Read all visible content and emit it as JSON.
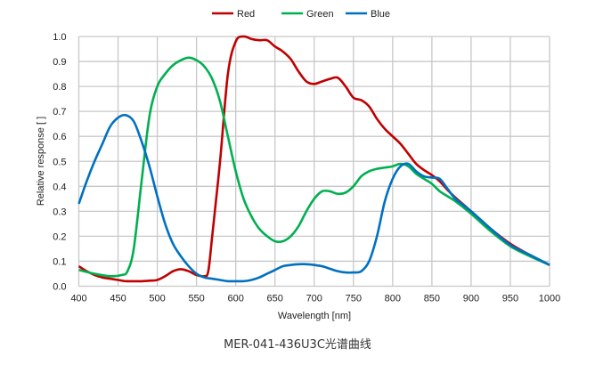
{
  "chart_data": {
    "type": "line",
    "title": "",
    "caption": "MER-041-436U3C光谱曲线",
    "xlabel": "Wavelength [nm]",
    "ylabel": "Relative response [ ]",
    "xlim": [
      400,
      1000
    ],
    "ylim": [
      0,
      1.0
    ],
    "xticks": [
      400,
      450,
      500,
      550,
      600,
      650,
      700,
      750,
      800,
      850,
      900,
      950,
      1000
    ],
    "yticks": [
      "0.0",
      "0.1",
      "0.2",
      "0.3",
      "0.4",
      "0.5",
      "0.6",
      "0.7",
      "0.8",
      "0.9",
      "1.0"
    ],
    "grid": true,
    "legend_position": "top",
    "series": [
      {
        "name": "Red",
        "color": "#c00000",
        "points": [
          [
            400,
            0.08
          ],
          [
            410,
            0.06
          ],
          [
            420,
            0.045
          ],
          [
            430,
            0.035
          ],
          [
            440,
            0.03
          ],
          [
            450,
            0.025
          ],
          [
            460,
            0.02
          ],
          [
            470,
            0.02
          ],
          [
            480,
            0.02
          ],
          [
            490,
            0.022
          ],
          [
            500,
            0.025
          ],
          [
            510,
            0.04
          ],
          [
            520,
            0.06
          ],
          [
            530,
            0.068
          ],
          [
            540,
            0.06
          ],
          [
            550,
            0.045
          ],
          [
            560,
            0.04
          ],
          [
            565,
            0.06
          ],
          [
            570,
            0.2
          ],
          [
            580,
            0.5
          ],
          [
            590,
            0.85
          ],
          [
            600,
            0.98
          ],
          [
            610,
            1.0
          ],
          [
            620,
            0.99
          ],
          [
            630,
            0.985
          ],
          [
            640,
            0.985
          ],
          [
            650,
            0.96
          ],
          [
            660,
            0.94
          ],
          [
            670,
            0.91
          ],
          [
            680,
            0.86
          ],
          [
            690,
            0.82
          ],
          [
            700,
            0.81
          ],
          [
            710,
            0.82
          ],
          [
            720,
            0.83
          ],
          [
            730,
            0.835
          ],
          [
            740,
            0.8
          ],
          [
            750,
            0.755
          ],
          [
            760,
            0.745
          ],
          [
            770,
            0.72
          ],
          [
            780,
            0.67
          ],
          [
            790,
            0.63
          ],
          [
            800,
            0.6
          ],
          [
            810,
            0.57
          ],
          [
            820,
            0.53
          ],
          [
            830,
            0.49
          ],
          [
            840,
            0.465
          ],
          [
            850,
            0.445
          ],
          [
            860,
            0.42
          ],
          [
            870,
            0.385
          ],
          [
            880,
            0.355
          ],
          [
            900,
            0.3
          ],
          [
            925,
            0.23
          ],
          [
            950,
            0.17
          ],
          [
            975,
            0.125
          ],
          [
            1000,
            0.085
          ]
        ]
      },
      {
        "name": "Green",
        "color": "#00b050",
        "points": [
          [
            400,
            0.065
          ],
          [
            420,
            0.05
          ],
          [
            440,
            0.04
          ],
          [
            455,
            0.045
          ],
          [
            462,
            0.06
          ],
          [
            470,
            0.15
          ],
          [
            480,
            0.42
          ],
          [
            490,
            0.68
          ],
          [
            500,
            0.8
          ],
          [
            510,
            0.85
          ],
          [
            520,
            0.885
          ],
          [
            530,
            0.905
          ],
          [
            540,
            0.915
          ],
          [
            550,
            0.905
          ],
          [
            560,
            0.88
          ],
          [
            570,
            0.83
          ],
          [
            580,
            0.74
          ],
          [
            590,
            0.6
          ],
          [
            600,
            0.46
          ],
          [
            610,
            0.35
          ],
          [
            620,
            0.28
          ],
          [
            630,
            0.23
          ],
          [
            640,
            0.2
          ],
          [
            650,
            0.18
          ],
          [
            660,
            0.18
          ],
          [
            670,
            0.2
          ],
          [
            680,
            0.24
          ],
          [
            690,
            0.3
          ],
          [
            700,
            0.35
          ],
          [
            710,
            0.38
          ],
          [
            720,
            0.38
          ],
          [
            730,
            0.37
          ],
          [
            740,
            0.375
          ],
          [
            750,
            0.4
          ],
          [
            760,
            0.44
          ],
          [
            770,
            0.46
          ],
          [
            780,
            0.47
          ],
          [
            790,
            0.475
          ],
          [
            800,
            0.48
          ],
          [
            810,
            0.49
          ],
          [
            820,
            0.48
          ],
          [
            830,
            0.45
          ],
          [
            840,
            0.43
          ],
          [
            850,
            0.41
          ],
          [
            860,
            0.38
          ],
          [
            870,
            0.36
          ],
          [
            880,
            0.34
          ],
          [
            900,
            0.29
          ],
          [
            925,
            0.22
          ],
          [
            950,
            0.16
          ],
          [
            975,
            0.12
          ],
          [
            1000,
            0.085
          ]
        ]
      },
      {
        "name": "Blue",
        "color": "#0070c0",
        "points": [
          [
            400,
            0.33
          ],
          [
            410,
            0.42
          ],
          [
            420,
            0.5
          ],
          [
            430,
            0.57
          ],
          [
            440,
            0.64
          ],
          [
            450,
            0.675
          ],
          [
            460,
            0.685
          ],
          [
            470,
            0.66
          ],
          [
            480,
            0.58
          ],
          [
            490,
            0.48
          ],
          [
            500,
            0.36
          ],
          [
            510,
            0.25
          ],
          [
            520,
            0.17
          ],
          [
            530,
            0.12
          ],
          [
            540,
            0.08
          ],
          [
            550,
            0.05
          ],
          [
            560,
            0.035
          ],
          [
            570,
            0.03
          ],
          [
            580,
            0.025
          ],
          [
            590,
            0.02
          ],
          [
            600,
            0.02
          ],
          [
            610,
            0.02
          ],
          [
            620,
            0.025
          ],
          [
            630,
            0.035
          ],
          [
            640,
            0.05
          ],
          [
            650,
            0.065
          ],
          [
            660,
            0.08
          ],
          [
            670,
            0.085
          ],
          [
            680,
            0.088
          ],
          [
            690,
            0.088
          ],
          [
            700,
            0.085
          ],
          [
            710,
            0.08
          ],
          [
            720,
            0.07
          ],
          [
            730,
            0.06
          ],
          [
            740,
            0.055
          ],
          [
            750,
            0.055
          ],
          [
            760,
            0.06
          ],
          [
            770,
            0.1
          ],
          [
            780,
            0.2
          ],
          [
            790,
            0.34
          ],
          [
            800,
            0.43
          ],
          [
            810,
            0.48
          ],
          [
            820,
            0.49
          ],
          [
            830,
            0.46
          ],
          [
            840,
            0.44
          ],
          [
            850,
            0.435
          ],
          [
            860,
            0.43
          ],
          [
            870,
            0.39
          ],
          [
            880,
            0.35
          ],
          [
            900,
            0.3
          ],
          [
            925,
            0.23
          ],
          [
            950,
            0.165
          ],
          [
            975,
            0.125
          ],
          [
            1000,
            0.085
          ]
        ]
      }
    ]
  }
}
